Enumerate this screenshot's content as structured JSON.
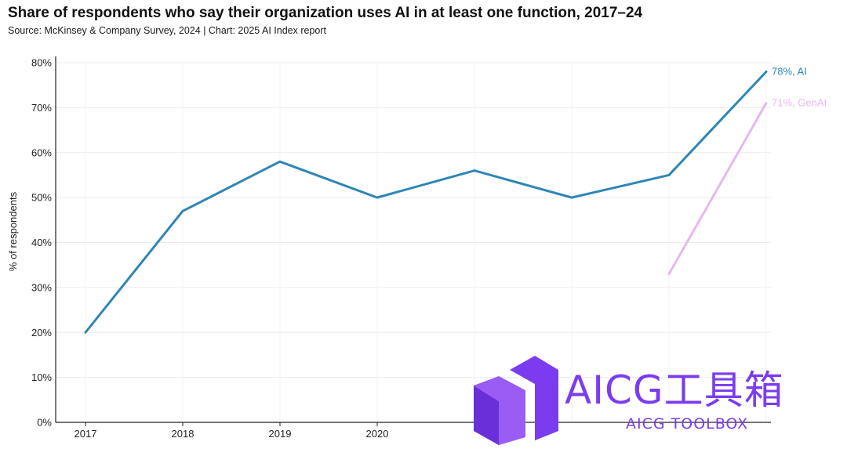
{
  "chart_data": {
    "type": "line",
    "title": "Share of respondents who say their organization uses AI in at least one function, 2017–24",
    "subtitle": "Source: McKinsey & Company Survey, 2024 | Chart: 2025 AI Index report",
    "ylabel": "% of respondents",
    "xlabel": "",
    "ylim": [
      0,
      80
    ],
    "yticks": [
      "0%",
      "10%",
      "20%",
      "30%",
      "40%",
      "50%",
      "60%",
      "70%",
      "80%"
    ],
    "xticks": [
      "2017",
      "2018",
      "2019",
      "2020"
    ],
    "grid": true,
    "series": [
      {
        "name": "AI",
        "end_label": "78%, AI",
        "color": "#2e86b5",
        "x": [
          2017,
          2018,
          2019,
          2020,
          2021,
          2022,
          2023,
          2024
        ],
        "values": [
          20,
          47,
          58,
          50,
          56,
          50,
          55,
          78
        ]
      },
      {
        "name": "GenAI",
        "end_label": "71%, GenAI",
        "color": "#e9b6f2",
        "x": [
          2023,
          2024
        ],
        "values": [
          33,
          71
        ]
      }
    ]
  },
  "watermark": {
    "text": "AICG工具箱",
    "subtext": "AICG TOOLBOX",
    "color": "#7b3cf0"
  }
}
